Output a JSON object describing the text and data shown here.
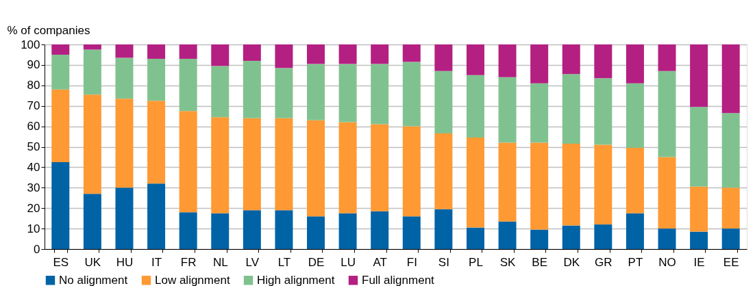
{
  "chart_data": {
    "type": "bar",
    "stacked": true,
    "ylabel": "% of companies",
    "categories": [
      "ES",
      "UK",
      "HU",
      "IT",
      "FR",
      "NL",
      "LV",
      "LT",
      "DE",
      "LU",
      "AT",
      "FI",
      "SI",
      "PL",
      "SK",
      "BE",
      "DK",
      "GR",
      "PT",
      "NO",
      "IE",
      "EE"
    ],
    "series": [
      {
        "name": "No alignment",
        "color": "#0063a6",
        "values": [
          42.5,
          27,
          30,
          32,
          18,
          17.5,
          19,
          19,
          16,
          17.5,
          18.5,
          16,
          19.5,
          10.5,
          13.5,
          9.5,
          11.5,
          12,
          17.5,
          10,
          8.5,
          10
        ]
      },
      {
        "name": "Low alignment",
        "color": "#ff9933",
        "values": [
          35.5,
          48.5,
          43.5,
          40.5,
          49.5,
          47,
          45,
          45,
          47,
          44.5,
          42.5,
          44,
          37,
          44,
          38.5,
          42.5,
          40,
          39,
          32,
          35,
          22,
          20
        ]
      },
      {
        "name": "High alignment",
        "color": "#80c28f",
        "values": [
          17,
          22,
          20,
          20.5,
          25.5,
          25,
          28,
          24.5,
          27.5,
          28.5,
          29.5,
          31.5,
          30.5,
          30.5,
          32,
          29,
          34,
          32.5,
          31.5,
          42,
          39,
          36.5
        ]
      },
      {
        "name": "Full alignment",
        "color": "#b41f82",
        "values": [
          5,
          2.5,
          6.5,
          7,
          7,
          10.5,
          8,
          11.5,
          9.5,
          9.5,
          9.5,
          8.5,
          13,
          15,
          16,
          19,
          14.5,
          16.5,
          19,
          13,
          30.5,
          33.5
        ]
      }
    ],
    "ylim": [
      0,
      100
    ],
    "yticks": [
      0,
      10,
      20,
      30,
      40,
      50,
      60,
      70,
      80,
      90,
      100
    ],
    "grid": "y",
    "legend": "bottom"
  }
}
